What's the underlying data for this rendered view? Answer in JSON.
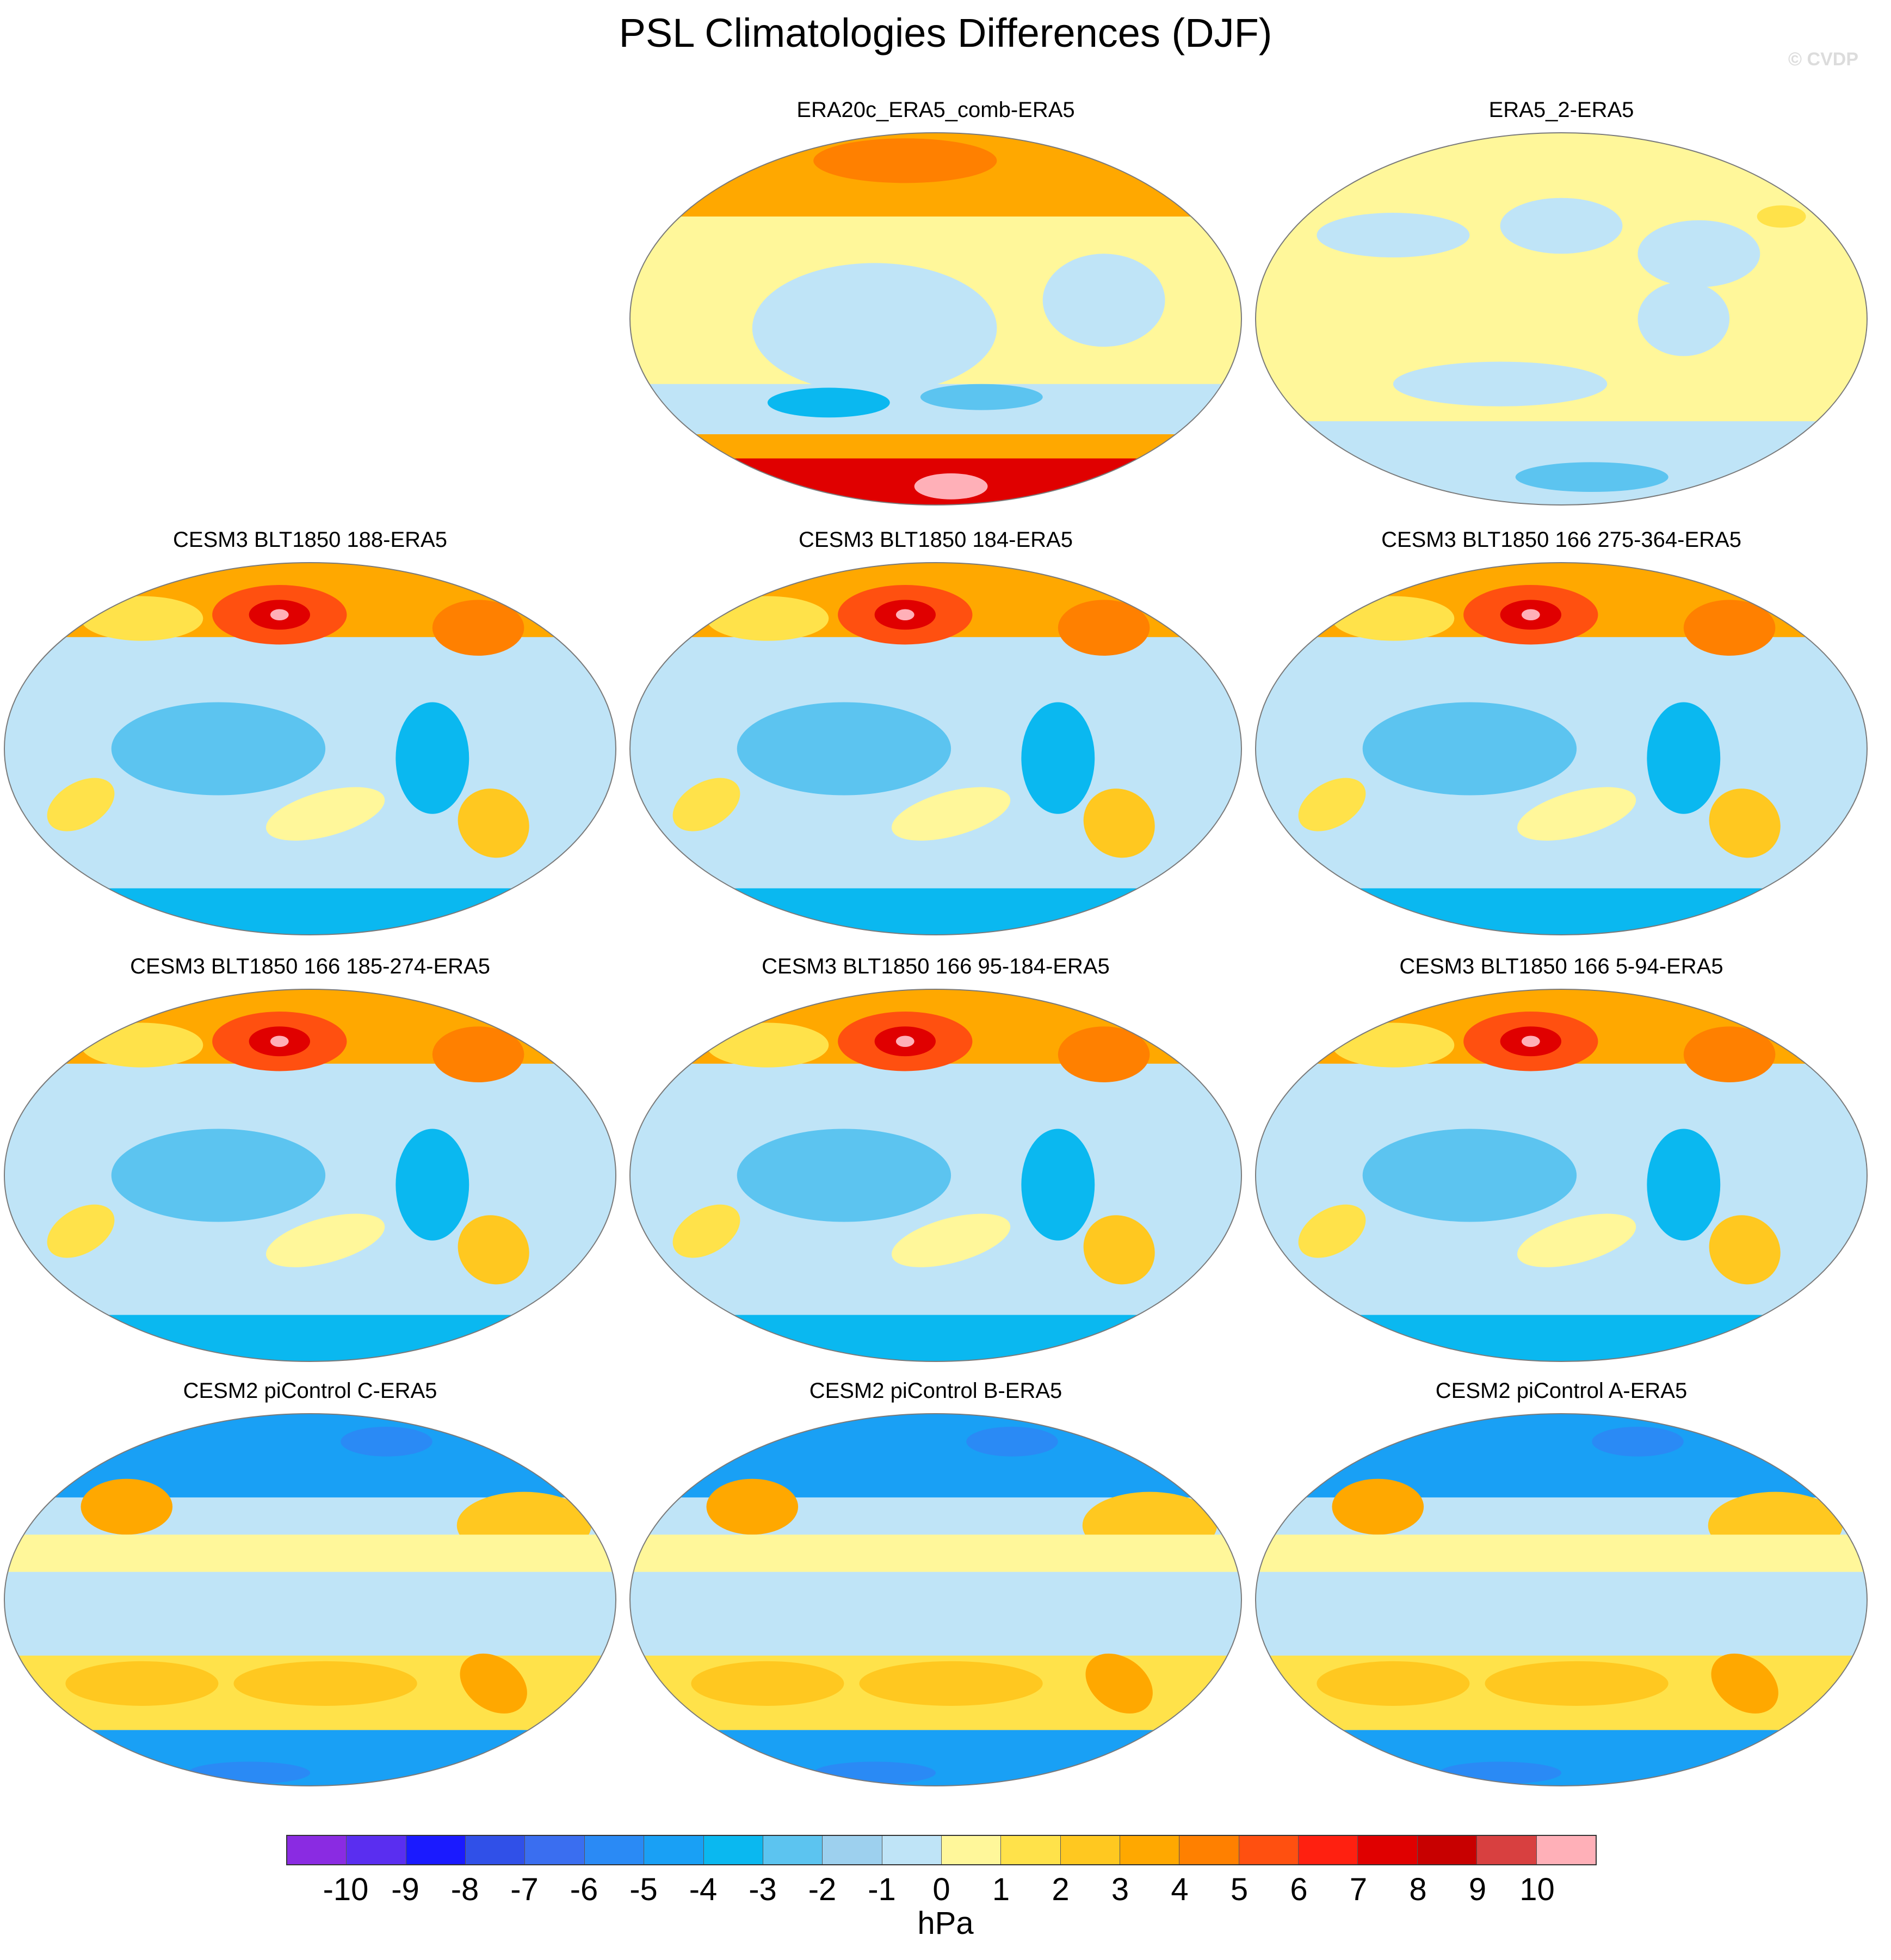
{
  "title": "PSL Climatologies Differences (DJF)",
  "watermark": "© CVDP",
  "panels": [
    {
      "id": "era20c",
      "title": "ERA20c_ERA5_comb-ERA5",
      "style": "era20c"
    },
    {
      "id": "era5_2",
      "title": "ERA5_2-ERA5",
      "style": "era5_2"
    },
    {
      "id": "blt188",
      "title": "CESM3 BLT1850 188-ERA5",
      "style": "cesm3"
    },
    {
      "id": "blt184",
      "title": "CESM3 BLT1850 184-ERA5",
      "style": "cesm3"
    },
    {
      "id": "blt166_275",
      "title": "CESM3 BLT1850 166 275-364-ERA5",
      "style": "cesm3"
    },
    {
      "id": "blt166_185",
      "title": "CESM3 BLT1850 166 185-274-ERA5",
      "style": "cesm3"
    },
    {
      "id": "blt166_95",
      "title": "CESM3 BLT1850 166 95-184-ERA5",
      "style": "cesm3"
    },
    {
      "id": "blt166_5",
      "title": "CESM3 BLT1850 166 5-94-ERA5",
      "style": "cesm3"
    },
    {
      "id": "cesm2_c",
      "title": "CESM2 piControl C-ERA5",
      "style": "cesm2"
    },
    {
      "id": "cesm2_b",
      "title": "CESM2 piControl B-ERA5",
      "style": "cesm2"
    },
    {
      "id": "cesm2_a",
      "title": "CESM2 piControl A-ERA5",
      "style": "cesm2"
    }
  ],
  "colorbar": {
    "units": "hPa",
    "tick_labels": [
      "-10",
      "-9",
      "-8",
      "-7",
      "-6",
      "-5",
      "-4",
      "-3",
      "-2",
      "-1",
      "0",
      "1",
      "2",
      "3",
      "4",
      "5",
      "6",
      "7",
      "8",
      "9",
      "10"
    ],
    "colors": [
      "#8a2be2",
      "#5a2ef0",
      "#1a1aff",
      "#3050e8",
      "#3a6ef0",
      "#2a8af5",
      "#19a0f5",
      "#0ab8f0",
      "#5cc4f0",
      "#9dd0ee",
      "#bfe4f7",
      "#fff79a",
      "#ffe24a",
      "#ffc820",
      "#ffa800",
      "#ff8000",
      "#ff5010",
      "#ff2010",
      "#e00000",
      "#c80000",
      "#d84040",
      "#ffb0b8"
    ]
  }
}
